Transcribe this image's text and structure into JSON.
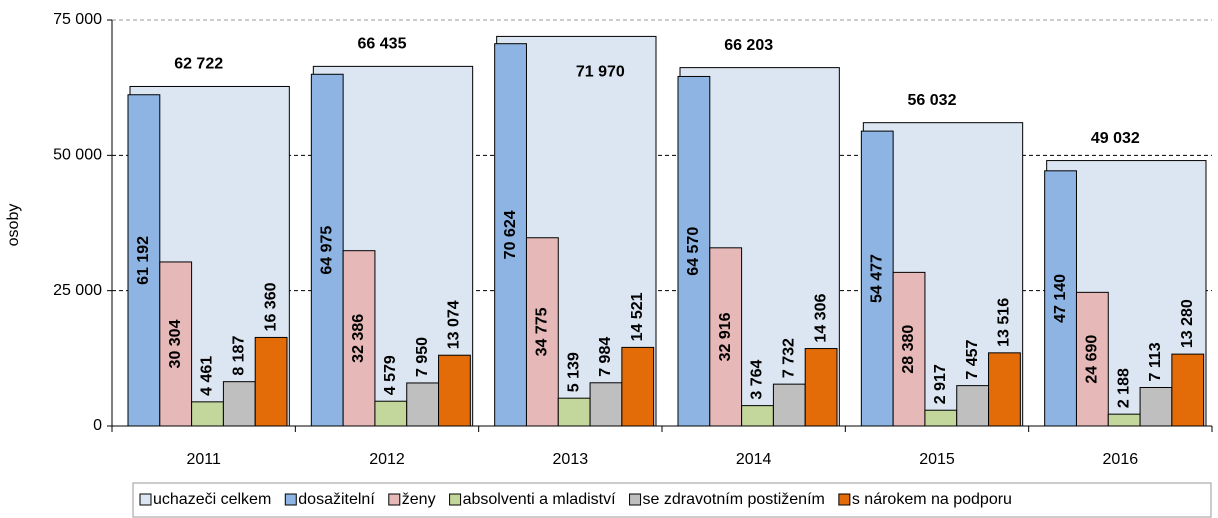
{
  "chart_data": {
    "type": "bar",
    "y_label": "osoby",
    "categories": [
      "2011",
      "2012",
      "2013",
      "2014",
      "2015",
      "2016"
    ],
    "series": [
      {
        "name": "uchazeči celkem",
        "color": "#dce6f2",
        "values": [
          62722,
          66435,
          71970,
          66203,
          56032,
          49032
        ],
        "value_labels": [
          "62 722",
          "66 435",
          "71 970",
          "66 203",
          "56 032",
          "49 032"
        ]
      },
      {
        "name": "dosažitelní",
        "color": "#8db4e2",
        "values": [
          61192,
          64975,
          70624,
          64570,
          54477,
          47140
        ],
        "value_labels": [
          "61 192",
          "64 975",
          "70 624",
          "64 570",
          "54 477",
          "47 140"
        ]
      },
      {
        "name": "ženy",
        "color": "#e6b9b8",
        "values": [
          30304,
          32386,
          34775,
          32916,
          28380,
          24690
        ],
        "value_labels": [
          "30 304",
          "32 386",
          "34 775",
          "32 916",
          "28 380",
          "24 690"
        ]
      },
      {
        "name": "absolventi a mladiství",
        "color": "#c3d69b",
        "values": [
          4461,
          4579,
          5139,
          3764,
          2917,
          2188
        ],
        "value_labels": [
          "4 461",
          "4 579",
          "5 139",
          "3 764",
          "2 917",
          "2 188"
        ]
      },
      {
        "name": "se zdravotním postižením",
        "color": "#bfbfbf",
        "values": [
          8187,
          7950,
          7984,
          7732,
          7457,
          7113
        ],
        "value_labels": [
          "8 187",
          "7 950",
          "7 984",
          "7 732",
          "7 457",
          "7 113"
        ]
      },
      {
        "name": "s nárokem na podporu",
        "color": "#e36c09",
        "values": [
          16360,
          13074,
          14521,
          14306,
          13516,
          13280
        ],
        "value_labels": [
          "16 360",
          "13 074",
          "14 521",
          "14 306",
          "13 516",
          "13 280"
        ]
      }
    ],
    "ylim": [
      0,
      75000
    ],
    "yticks": [
      0,
      {
        "value": 25000,
        "label": "25 000"
      },
      {
        "value": 50000,
        "label": "50 000"
      },
      {
        "value": 75000,
        "label": "75 000"
      }
    ],
    "grid": true
  }
}
